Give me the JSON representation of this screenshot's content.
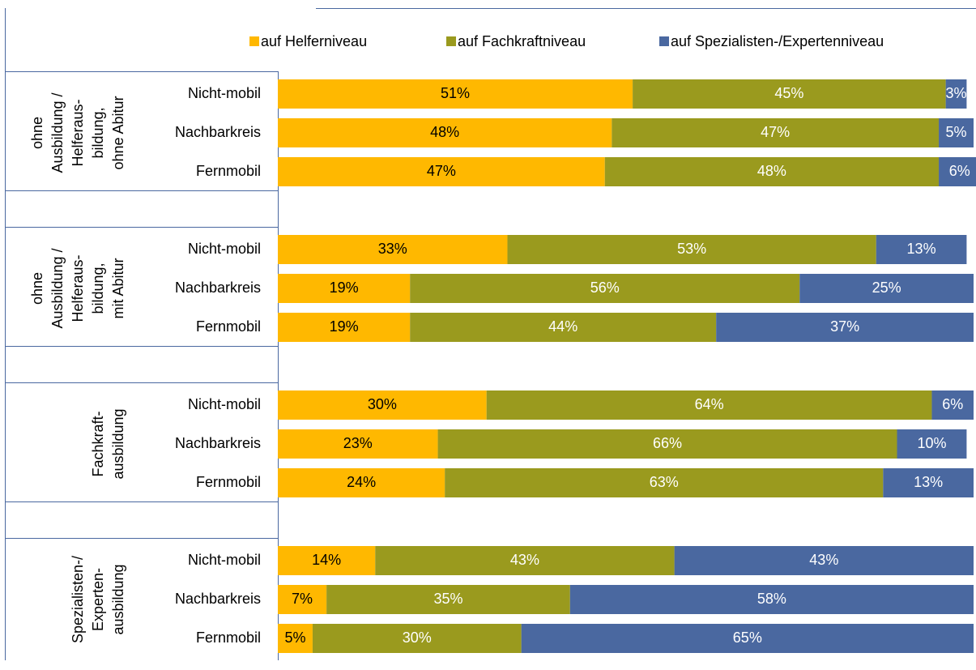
{
  "chart_data": {
    "type": "stacked_barh",
    "groups": [
      {
        "lines": [
          "ohne",
          "Ausbildung /",
          "Helferaus-",
          "bildung,",
          "ohne Abitur"
        ]
      },
      {
        "lines": [
          "ohne",
          "Ausbildung /",
          "Helferaus-",
          "bildung,",
          "mit Abitur"
        ]
      },
      {
        "lines": [
          "Fachkraft-",
          "ausbildung"
        ]
      },
      {
        "lines": [
          "Spezialisten-/",
          "Experten-",
          "ausbildung"
        ]
      }
    ],
    "categories": [
      "Nicht-mobil",
      "Nachbarkreis",
      "Fernmobil",
      "Nicht-mobil",
      "Nachbarkreis",
      "Fernmobil",
      "Nicht-mobil",
      "Nachbarkreis",
      "Fernmobil",
      "Nicht-mobil",
      "Nachbarkreis",
      "Fernmobil"
    ],
    "series": [
      {
        "name": "auf Helferniveau",
        "color": "#FFB800",
        "label_color": "#000000",
        "values": [
          51,
          48,
          47,
          33,
          19,
          19,
          30,
          23,
          24,
          14,
          7,
          5
        ],
        "value_labels": [
          "51%",
          "48%",
          "47%",
          "33%",
          "19%",
          "19%",
          "30%",
          "23%",
          "24%",
          "14%",
          "7%",
          "5%"
        ]
      },
      {
        "name": "auf Fachkraftniveau",
        "color": "#9A9A1E",
        "label_color": "#FFFFFF",
        "values": [
          45,
          47,
          48,
          53,
          56,
          44,
          64,
          66,
          63,
          43,
          35,
          30
        ],
        "value_labels": [
          "45%",
          "47%",
          "48%",
          "53%",
          "56%",
          "44%",
          "64%",
          "66%",
          "63%",
          "43%",
          "35%",
          "30%"
        ]
      },
      {
        "name": "auf Spezialisten-/Expertenniveau",
        "color": "#4A68A0",
        "label_color": "#FFFFFF",
        "values": [
          3,
          5,
          6,
          13,
          25,
          37,
          6,
          10,
          13,
          43,
          58,
          65
        ],
        "value_labels": [
          "3%",
          "5%",
          "6%",
          "13%",
          "25%",
          "37%",
          "6%",
          "10%",
          "13%",
          "43%",
          "58%",
          "65%"
        ]
      }
    ],
    "xlim": [
      0,
      100
    ]
  }
}
